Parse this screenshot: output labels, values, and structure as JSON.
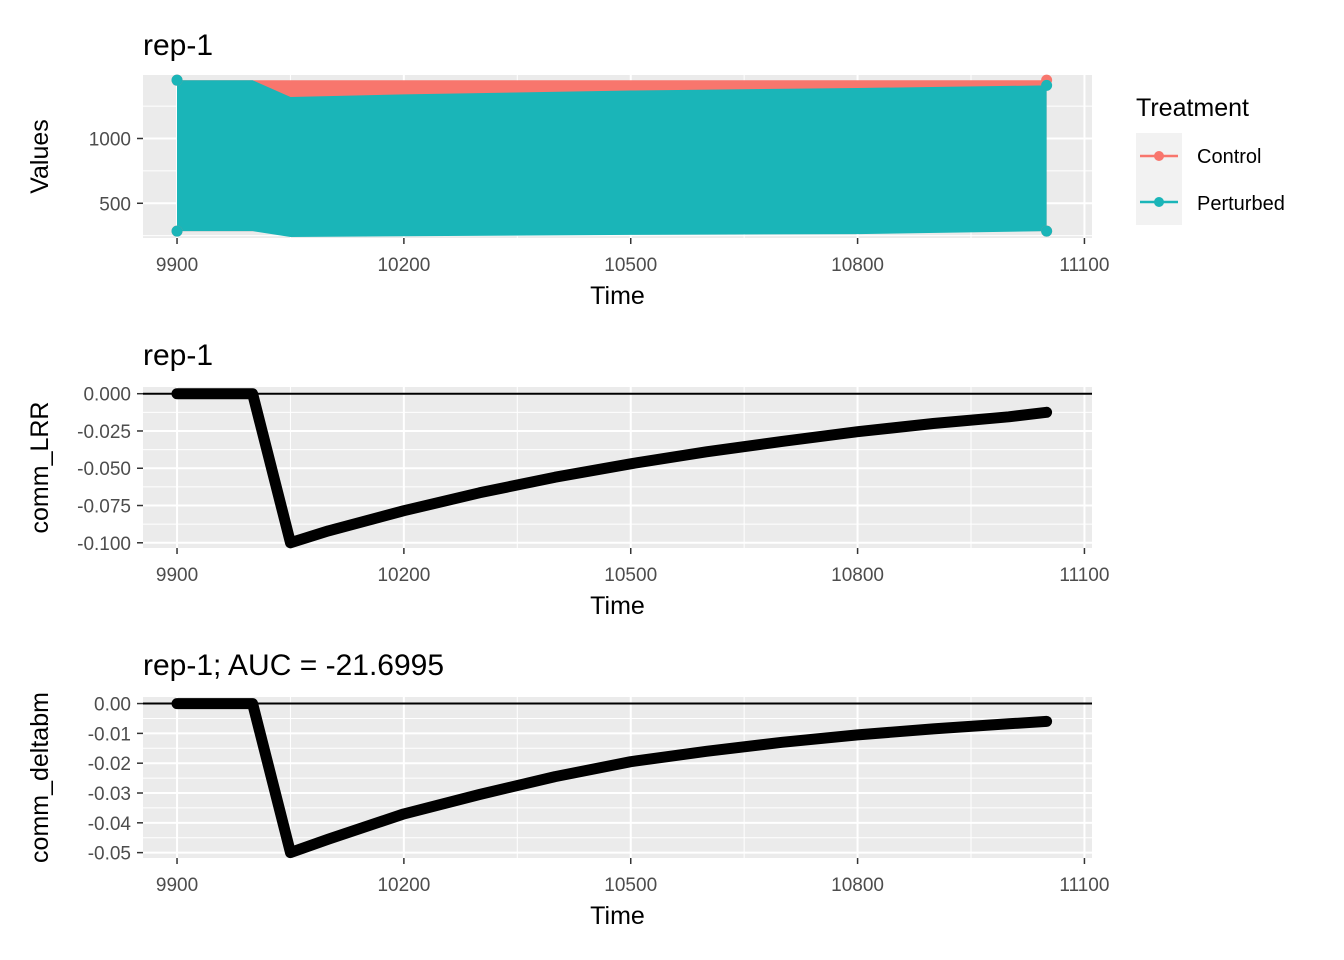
{
  "colors": {
    "control": "#F8766D",
    "perturbed": "#1AB5B8",
    "panel_bg": "#EBEBEB",
    "grid": "#FFFFFF",
    "tick_text": "#4D4D4D",
    "line": "#000000"
  },
  "legend": {
    "title": "Treatment",
    "items": [
      {
        "label": "Control",
        "color": "#F8766D"
      },
      {
        "label": "Perturbed",
        "color": "#1AB5B8"
      }
    ]
  },
  "chart_data": [
    {
      "type": "area",
      "title": "rep-1",
      "xlabel": "Time",
      "ylabel": "Values",
      "xlim": [
        9855,
        11110
      ],
      "ylim": [
        232,
        1490
      ],
      "x_ticks": [
        9900,
        10200,
        10500,
        10800,
        11100
      ],
      "x_tick_labels": [
        "9900",
        "10200",
        "10500",
        "10800",
        "11100"
      ],
      "y_ticks": [
        500,
        1000
      ],
      "y_tick_labels": [
        "500",
        "1000"
      ],
      "grid": true,
      "legend_position": "right",
      "series": [
        {
          "name": "Control",
          "color": "#F8766D",
          "x": [
            9900,
            10000,
            10050,
            10500,
            11050
          ],
          "upper": [
            1450,
            1450,
            1450,
            1450,
            1450
          ],
          "lower": [
            285,
            285,
            285,
            285,
            285
          ]
        },
        {
          "name": "Perturbed",
          "color": "#1AB5B8",
          "x": [
            9900,
            10000,
            10050,
            10200,
            10500,
            10800,
            11050
          ],
          "upper": [
            1450,
            1450,
            1320,
            1340,
            1370,
            1390,
            1410
          ],
          "lower": [
            285,
            285,
            240,
            246,
            256,
            262,
            285
          ]
        }
      ]
    },
    {
      "type": "line",
      "title": "rep-1",
      "xlabel": "Time",
      "ylabel": "comm_LRR",
      "xlim": [
        9855,
        11110
      ],
      "ylim": [
        -0.1035,
        0.0045
      ],
      "x_ticks": [
        9900,
        10200,
        10500,
        10800,
        11100
      ],
      "x_tick_labels": [
        "9900",
        "10200",
        "10500",
        "10800",
        "11100"
      ],
      "y_ticks": [
        0.0,
        -0.025,
        -0.05,
        -0.075,
        -0.1
      ],
      "y_tick_labels": [
        "0.000",
        "-0.025",
        "-0.050",
        "-0.075",
        "-0.100"
      ],
      "hline": 0,
      "grid": true,
      "x": [
        9900,
        10000,
        10050,
        10100,
        10200,
        10300,
        10400,
        10500,
        10600,
        10700,
        10800,
        10900,
        11000,
        11050
      ],
      "y": [
        0.0,
        0.0,
        -0.1,
        -0.092,
        -0.0785,
        -0.0665,
        -0.056,
        -0.047,
        -0.039,
        -0.032,
        -0.0255,
        -0.02,
        -0.0155,
        -0.0125
      ]
    },
    {
      "type": "line",
      "title": "rep-1; AUC = -21.6995",
      "xlabel": "Time",
      "ylabel": "comm_deltabm",
      "xlim": [
        9855,
        11110
      ],
      "ylim": [
        -0.0518,
        0.0022
      ],
      "x_ticks": [
        9900,
        10200,
        10500,
        10800,
        11100
      ],
      "x_tick_labels": [
        "9900",
        "10200",
        "10500",
        "10800",
        "11100"
      ],
      "y_ticks": [
        0.0,
        -0.01,
        -0.02,
        -0.03,
        -0.04,
        -0.05
      ],
      "y_tick_labels": [
        "0.00",
        "-0.01",
        "-0.02",
        "-0.03",
        "-0.04",
        "-0.05"
      ],
      "hline": 0,
      "grid": true,
      "x": [
        9900,
        10000,
        10050,
        10100,
        10200,
        10300,
        10400,
        10500,
        10600,
        10700,
        10800,
        10900,
        11000,
        11050
      ],
      "y": [
        0.0,
        0.0,
        -0.05,
        -0.0455,
        -0.037,
        -0.0305,
        -0.0245,
        -0.0195,
        -0.016,
        -0.013,
        -0.0105,
        -0.0085,
        -0.0068,
        -0.006
      ]
    }
  ]
}
